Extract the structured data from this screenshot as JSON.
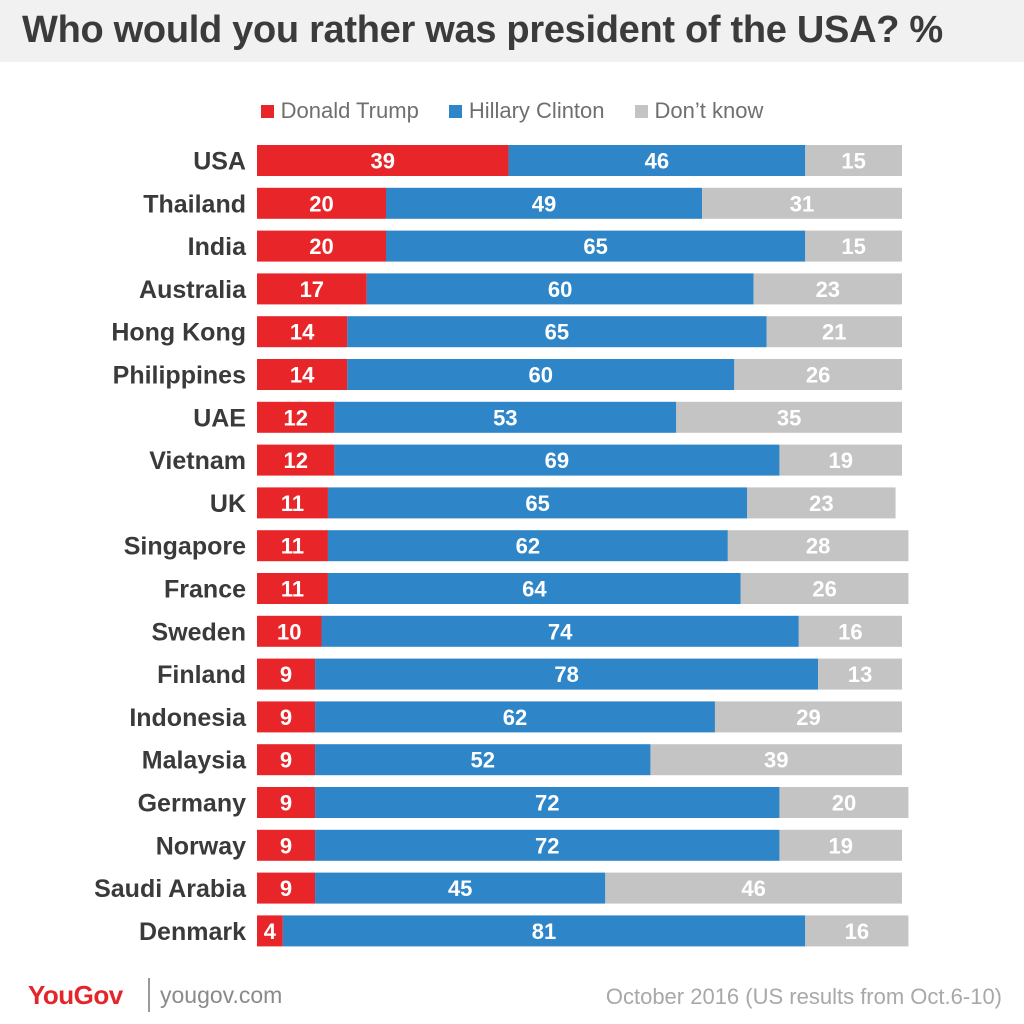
{
  "title": "Who would you rather was president of the USA? %",
  "legend": [
    {
      "label": "Donald Trump",
      "color": "#e8262a"
    },
    {
      "label": "Hillary Clinton",
      "color": "#2e86c9"
    },
    {
      "label": "Don’t know",
      "color": "#c4c4c4"
    }
  ],
  "chart_data": {
    "type": "bar",
    "orientation": "horizontal",
    "stacked": true,
    "title": "Who would you rather was president of the USA? %",
    "categories": [
      "USA",
      "Thailand",
      "India",
      "Australia",
      "Hong Kong",
      "Philippines",
      "UAE",
      "Vietnam",
      "UK",
      "Singapore",
      "France",
      "Sweden",
      "Finland",
      "Indonesia",
      "Malaysia",
      "Germany",
      "Norway",
      "Saudi Arabia",
      "Denmark"
    ],
    "series": [
      {
        "name": "Donald Trump",
        "color": "#e8262a",
        "values": [
          39,
          20,
          20,
          17,
          14,
          14,
          12,
          12,
          11,
          11,
          11,
          10,
          9,
          9,
          9,
          9,
          9,
          9,
          4
        ]
      },
      {
        "name": "Hillary Clinton",
        "color": "#2e86c9",
        "values": [
          46,
          49,
          65,
          60,
          65,
          60,
          53,
          69,
          65,
          62,
          64,
          74,
          78,
          62,
          52,
          72,
          72,
          45,
          81
        ]
      },
      {
        "name": "Don’t know",
        "color": "#c4c4c4",
        "values": [
          15,
          31,
          15,
          23,
          21,
          26,
          35,
          19,
          23,
          28,
          26,
          16,
          13,
          29,
          39,
          20,
          19,
          46,
          16
        ]
      }
    ],
    "legend_position": "top",
    "grid": false
  },
  "footer": {
    "logo": "YouGov",
    "site": "yougov.com",
    "note": "October 2016 (US results from Oct.6-10)"
  }
}
